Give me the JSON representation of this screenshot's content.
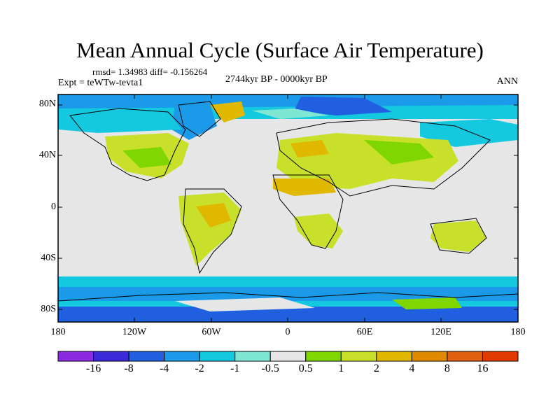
{
  "title": "Mean Annual Cycle (Surface Air Temperature)",
  "stats": "rmsd= 1.34983 diff= -0.156264",
  "experiment": "Expt = teWTw-tevta1",
  "period": "2744kyr BP - 0000kyr BP",
  "season": "ANN",
  "lat_labels": [
    "80N",
    "40N",
    "0",
    "40S",
    "80S"
  ],
  "lon_labels": [
    "180",
    "120W",
    "60W",
    "0",
    "60E",
    "120E",
    "180"
  ],
  "colorbar": {
    "labels": [
      "-16",
      "-8",
      "-4",
      "-2",
      "-1",
      "-0.5",
      "0.5",
      "1",
      "2",
      "4",
      "8",
      "16"
    ],
    "colors": [
      "#8a2be2",
      "#3a2ad8",
      "#1f5fe0",
      "#1a9ae8",
      "#14c8e0",
      "#7fe6d4",
      "#e6e6e6",
      "#7fd600",
      "#c8e02a",
      "#e0b800",
      "#e08a00",
      "#e06010",
      "#e03a00"
    ]
  },
  "map_colors": {
    "neutral": "#e6e6e6",
    "cool_deep": "#1f5fe0",
    "cool_mid": "#1a9ae8",
    "cool_light": "#14c8e0",
    "cool_pale": "#7fe6d4",
    "warm_light": "#7fd600",
    "warm_mid": "#c8e02a",
    "warm_high": "#e0b800",
    "warm_hot": "#e08a00",
    "coast": "#000000"
  }
}
